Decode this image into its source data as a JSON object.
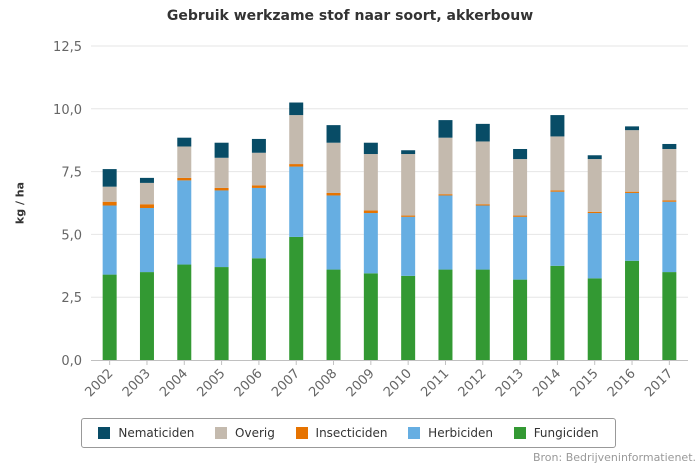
{
  "chart_data": {
    "type": "bar",
    "stacked": true,
    "title": "Gebruik werkzame stof naar soort, akkerbouw",
    "ylabel": "kg / ha",
    "xlabel": "",
    "ylim": [
      0,
      12.5
    ],
    "yticks": [
      "0,0",
      "2,5",
      "5,0",
      "7,5",
      "10,0",
      "12,5"
    ],
    "ytick_values": [
      0,
      2.5,
      5,
      7.5,
      10,
      12.5
    ],
    "grid": true,
    "legend_position": "bottom",
    "categories": [
      "2002",
      "2003",
      "2004",
      "2005",
      "2006",
      "2007",
      "2008",
      "2009",
      "2010",
      "2011",
      "2012",
      "2013",
      "2014",
      "2015",
      "2016",
      "2017"
    ],
    "series": [
      {
        "name": "Fungiciden",
        "color": "#339933",
        "values": [
          3.4,
          3.5,
          3.8,
          3.7,
          4.05,
          4.9,
          3.6,
          3.45,
          3.35,
          3.6,
          3.6,
          3.2,
          3.75,
          3.25,
          3.95,
          3.5
        ]
      },
      {
        "name": "Herbiciden",
        "color": "#66AEE2",
        "values": [
          2.75,
          2.55,
          3.35,
          3.05,
          2.8,
          2.8,
          2.95,
          2.4,
          2.35,
          2.95,
          2.55,
          2.5,
          2.95,
          2.6,
          2.7,
          2.8
        ]
      },
      {
        "name": "Insecticiden",
        "color": "#E67300",
        "values": [
          0.15,
          0.15,
          0.1,
          0.1,
          0.1,
          0.1,
          0.1,
          0.1,
          0.05,
          0.05,
          0.05,
          0.05,
          0.05,
          0.05,
          0.05,
          0.05
        ]
      },
      {
        "name": "Overig",
        "color": "#C4BAAE",
        "values": [
          0.6,
          0.85,
          1.25,
          1.2,
          1.3,
          1.95,
          2.0,
          2.25,
          2.45,
          2.25,
          2.5,
          2.25,
          2.15,
          2.1,
          2.45,
          2.05
        ]
      },
      {
        "name": "Nematiciden",
        "color": "#084C66",
        "values": [
          0.7,
          0.2,
          0.35,
          0.6,
          0.55,
          0.5,
          0.7,
          0.45,
          0.15,
          0.7,
          0.7,
          0.4,
          0.85,
          0.15,
          0.15,
          0.2
        ]
      }
    ],
    "legend_order": [
      "Nematiciden",
      "Overig",
      "Insecticiden",
      "Herbiciden",
      "Fungiciden"
    ]
  },
  "source_text": "Bron: Bedrijveninformatienet."
}
